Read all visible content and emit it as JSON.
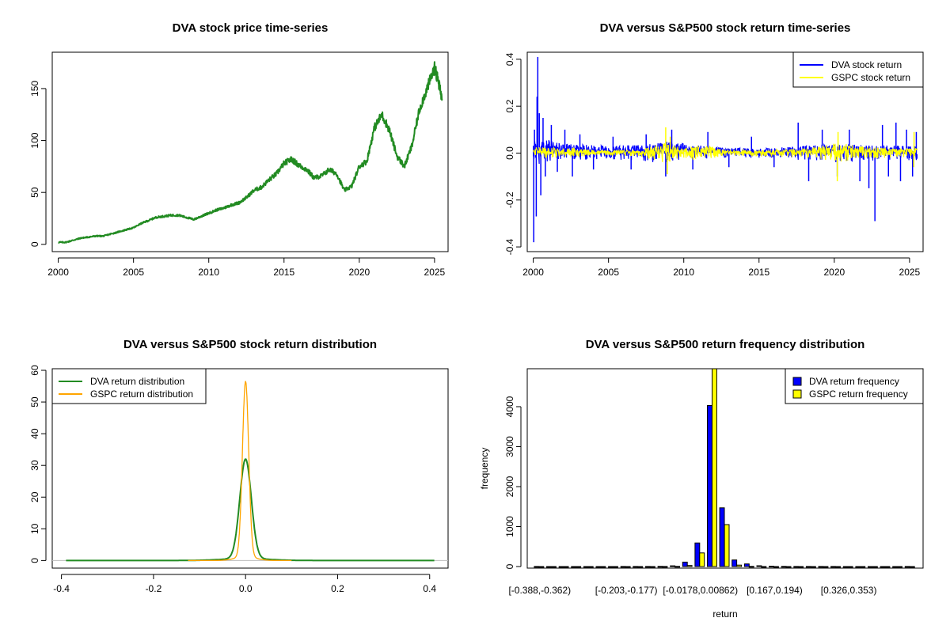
{
  "chart_data": [
    {
      "type": "line",
      "title": "DVA stock price time-series",
      "xlabel": "",
      "ylabel": "",
      "xlim": [
        1999.6,
        2025.9
      ],
      "ylim": [
        -7,
        185
      ],
      "xticks": [
        2000,
        2005,
        2010,
        2015,
        2020,
        2025
      ],
      "yticks": [
        0,
        50,
        100,
        150
      ],
      "colors": {
        "series": "#228B22"
      },
      "series": [
        {
          "values": [
            [
              2000.0,
              2
            ],
            [
              2000.5,
              2
            ],
            [
              2001.0,
              4
            ],
            [
              2001.5,
              6
            ],
            [
              2002.0,
              7
            ],
            [
              2002.5,
              8
            ],
            [
              2003.0,
              8
            ],
            [
              2003.5,
              10
            ],
            [
              2004.0,
              12
            ],
            [
              2004.5,
              14
            ],
            [
              2005.0,
              16
            ],
            [
              2005.5,
              20
            ],
            [
              2006.0,
              23
            ],
            [
              2006.5,
              26
            ],
            [
              2007.0,
              27
            ],
            [
              2007.5,
              28
            ],
            [
              2008.0,
              28
            ],
            [
              2008.5,
              26
            ],
            [
              2009.0,
              24
            ],
            [
              2009.5,
              27
            ],
            [
              2010.0,
              30
            ],
            [
              2010.5,
              33
            ],
            [
              2011.0,
              35
            ],
            [
              2011.5,
              38
            ],
            [
              2012.0,
              40
            ],
            [
              2012.5,
              45
            ],
            [
              2013.0,
              52
            ],
            [
              2013.5,
              55
            ],
            [
              2014.0,
              62
            ],
            [
              2014.5,
              68
            ],
            [
              2015.0,
              78
            ],
            [
              2015.5,
              82
            ],
            [
              2016.0,
              76
            ],
            [
              2016.5,
              72
            ],
            [
              2017.0,
              64
            ],
            [
              2017.5,
              66
            ],
            [
              2018.0,
              72
            ],
            [
              2018.5,
              68
            ],
            [
              2019.0,
              52
            ],
            [
              2019.5,
              56
            ],
            [
              2020.0,
              75
            ],
            [
              2020.5,
              80
            ],
            [
              2021.0,
              112
            ],
            [
              2021.5,
              125
            ],
            [
              2022.0,
              110
            ],
            [
              2022.5,
              85
            ],
            [
              2023.0,
              75
            ],
            [
              2023.5,
              95
            ],
            [
              2024.0,
              130
            ],
            [
              2024.5,
              150
            ],
            [
              2025.0,
              170
            ],
            [
              2025.2,
              160
            ],
            [
              2025.5,
              140
            ]
          ]
        }
      ]
    },
    {
      "type": "line",
      "title": "DVA versus S&P500 stock return time-series",
      "xlabel": "",
      "ylabel": "",
      "xlim": [
        1999.6,
        2025.9
      ],
      "ylim": [
        -0.42,
        0.43
      ],
      "xticks": [
        2000,
        2005,
        2010,
        2015,
        2020,
        2025
      ],
      "yticks": [
        -0.4,
        -0.2,
        0.0,
        0.2,
        0.4
      ],
      "legend": {
        "position": "top-right"
      },
      "series": [
        {
          "name": "DVA stock return",
          "color": "#0000FF",
          "bands": [
            {
              "x": 2000.0,
              "lo": -0.05,
              "hi": 0.05
            },
            {
              "x": 2001.0,
              "lo": -0.04,
              "hi": 0.06
            },
            {
              "x": 2002.0,
              "lo": -0.03,
              "hi": 0.04
            },
            {
              "x": 2005.0,
              "lo": -0.025,
              "hi": 0.03
            },
            {
              "x": 2008.0,
              "lo": -0.04,
              "hi": 0.04
            },
            {
              "x": 2009.0,
              "lo": -0.04,
              "hi": 0.05
            },
            {
              "x": 2012.0,
              "lo": -0.02,
              "hi": 0.025
            },
            {
              "x": 2015.0,
              "lo": -0.02,
              "hi": 0.02
            },
            {
              "x": 2018.0,
              "lo": -0.03,
              "hi": 0.03
            },
            {
              "x": 2020.0,
              "lo": -0.04,
              "hi": 0.04
            },
            {
              "x": 2022.0,
              "lo": -0.035,
              "hi": 0.035
            },
            {
              "x": 2025.5,
              "lo": -0.03,
              "hi": 0.03
            }
          ],
          "spikes": [
            [
              2000.03,
              -0.38
            ],
            [
              2000.08,
              0.1
            ],
            [
              2000.2,
              -0.27
            ],
            [
              2000.3,
              0.41
            ],
            [
              2000.25,
              0.24
            ],
            [
              2000.4,
              0.17
            ],
            [
              2000.5,
              -0.18
            ],
            [
              2000.65,
              0.15
            ],
            [
              2000.8,
              -0.1
            ],
            [
              2001.2,
              0.12
            ],
            [
              2001.6,
              -0.08
            ],
            [
              2002.1,
              0.1
            ],
            [
              2002.6,
              -0.1
            ],
            [
              2003.1,
              0.08
            ],
            [
              2004.0,
              -0.07
            ],
            [
              2005.3,
              0.07
            ],
            [
              2006.5,
              -0.07
            ],
            [
              2007.5,
              0.08
            ],
            [
              2008.8,
              -0.1
            ],
            [
              2009.2,
              0.1
            ],
            [
              2010.6,
              -0.07
            ],
            [
              2011.6,
              0.09
            ],
            [
              2013.0,
              -0.06
            ],
            [
              2014.5,
              0.07
            ],
            [
              2016.0,
              -0.06
            ],
            [
              2017.6,
              0.13
            ],
            [
              2018.3,
              -0.12
            ],
            [
              2019.2,
              0.1
            ],
            [
              2020.2,
              -0.1
            ],
            [
              2021.0,
              0.1
            ],
            [
              2021.7,
              -0.12
            ],
            [
              2022.3,
              -0.15
            ],
            [
              2022.7,
              -0.29
            ],
            [
              2023.2,
              0.12
            ],
            [
              2023.6,
              -0.1
            ],
            [
              2024.1,
              0.13
            ],
            [
              2024.4,
              -0.12
            ],
            [
              2024.8,
              0.1
            ],
            [
              2025.2,
              -0.1
            ],
            [
              2025.45,
              0.09
            ]
          ]
        },
        {
          "name": "GSPC stock return",
          "color": "#FFFF00",
          "bands": [
            {
              "x": 2000.0,
              "lo": -0.02,
              "hi": 0.025
            },
            {
              "x": 2002.5,
              "lo": -0.025,
              "hi": 0.025
            },
            {
              "x": 2004.0,
              "lo": -0.012,
              "hi": 0.012
            },
            {
              "x": 2007.0,
              "lo": -0.012,
              "hi": 0.012
            },
            {
              "x": 2008.8,
              "lo": -0.045,
              "hi": 0.05
            },
            {
              "x": 2009.5,
              "lo": -0.03,
              "hi": 0.03
            },
            {
              "x": 2011.6,
              "lo": -0.03,
              "hi": 0.03
            },
            {
              "x": 2013.0,
              "lo": -0.012,
              "hi": 0.012
            },
            {
              "x": 2016.0,
              "lo": -0.015,
              "hi": 0.015
            },
            {
              "x": 2018.0,
              "lo": -0.02,
              "hi": 0.02
            },
            {
              "x": 2020.2,
              "lo": -0.04,
              "hi": 0.045
            },
            {
              "x": 2022.0,
              "lo": -0.025,
              "hi": 0.025
            },
            {
              "x": 2025.5,
              "lo": -0.015,
              "hi": 0.02
            }
          ],
          "spikes": [
            [
              2008.8,
              0.11
            ],
            [
              2008.9,
              -0.09
            ],
            [
              2009.1,
              0.07
            ],
            [
              2020.2,
              -0.12
            ],
            [
              2020.25,
              0.09
            ],
            [
              2025.3,
              0.09
            ],
            [
              2025.28,
              -0.06
            ]
          ]
        }
      ]
    },
    {
      "type": "line",
      "title": "DVA versus S&P500 stock return distribution",
      "xlabel": "",
      "ylabel": "",
      "xlim": [
        -0.42,
        0.44
      ],
      "ylim": [
        -2.4,
        60.5
      ],
      "xticks": [
        -0.4,
        -0.2,
        0.0,
        0.2,
        0.4
      ],
      "yticks": [
        0,
        10,
        20,
        30,
        40,
        50,
        60
      ],
      "legend": {
        "position": "top-left"
      },
      "series": [
        {
          "name": "DVA return distribution",
          "color": "#228B22",
          "kind": "density",
          "range": [
            -0.39,
            0.41
          ],
          "center": 0.0,
          "peak": 32,
          "sigma": 0.0125,
          "tail": 0.6,
          "tailSigma": 0.05
        },
        {
          "name": "GSPC return distribution",
          "color": "#FFA500",
          "kind": "density",
          "range": [
            -0.125,
            0.1
          ],
          "center": 0.0,
          "peak": 56.5,
          "sigma": 0.0068,
          "tail": 1.2,
          "tailSigma": 0.022
        }
      ]
    },
    {
      "type": "bar",
      "title": "DVA versus S&P500 return frequency distribution",
      "xlabel": "return",
      "ylabel": "frequency",
      "ylim": [
        0,
        4950
      ],
      "yticks": [
        0,
        1000,
        2000,
        3000,
        4000
      ],
      "legend": {
        "position": "top-right"
      },
      "categories": [
        "[-0.388,-0.362)",
        "",
        "",
        "",
        "",
        "",
        "",
        "[-0.203,-0.177)",
        "",
        "",
        "",
        "",
        "",
        "[-0.0178,0.00862)",
        "",
        "",
        "",
        "",
        "",
        "[0.167,0.194)",
        "",
        "",
        "",
        "",
        "",
        "[0.326,0.353)",
        "",
        "",
        "",
        "",
        ""
      ],
      "series": [
        {
          "name": "DVA return frequency",
          "color": "#0000FF",
          "values": [
            1,
            0,
            0,
            0,
            0,
            0,
            0,
            1,
            1,
            2,
            4,
            18,
            110,
            590,
            4030,
            1470,
            165,
            65,
            20,
            8,
            4,
            2,
            1,
            1,
            1,
            0,
            0,
            0,
            0,
            0,
            1
          ]
        },
        {
          "name": "GSPC return frequency",
          "color": "#FFFF00",
          "values": [
            0,
            0,
            0,
            0,
            0,
            0,
            0,
            0,
            0,
            0,
            1,
            3,
            25,
            340,
            4950,
            1050,
            35,
            3,
            0,
            0,
            0,
            0,
            0,
            0,
            0,
            0,
            0,
            0,
            0,
            0,
            0
          ]
        }
      ]
    }
  ]
}
